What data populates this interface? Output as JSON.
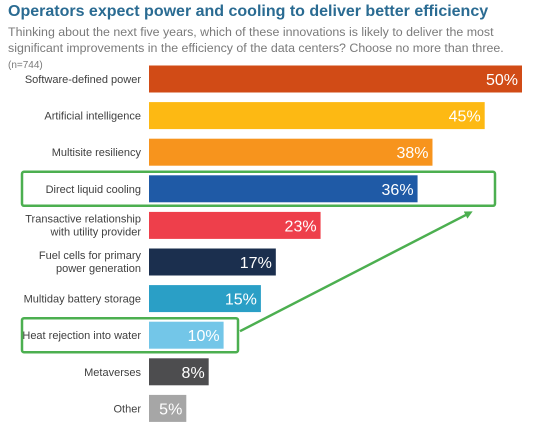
{
  "title": "Operators expect power and cooling to deliver better efficiency",
  "subtitle": "Thinking about the next five years, which of these innovations is likely to deliver the most significant improvements in the efficiency of the data centers? Choose no more than three.",
  "sample_note": "(n=744)",
  "chart_data": {
    "type": "bar",
    "orientation": "horizontal",
    "title": "Operators expect power and cooling to deliver better efficiency",
    "xlabel": "",
    "ylabel": "",
    "xlim": [
      0,
      50
    ],
    "grid": false,
    "legend": "none",
    "value_suffix": "%",
    "categories": [
      "Software-defined power",
      "Artificial intelligence",
      "Multisite resiliency",
      "Direct liquid cooling",
      "Transactive relationship with utility provider",
      "Fuel cells for primary power generation",
      "Multiday battery storage",
      "Heat rejection into water",
      "Metaverses",
      "Other"
    ],
    "values": [
      50,
      45,
      38,
      36,
      23,
      17,
      15,
      10,
      8,
      5
    ],
    "colors": [
      "#d14b16",
      "#fdb913",
      "#f7941d",
      "#1f5aa6",
      "#ee3f4b",
      "#1b2f4e",
      "#2a9fc6",
      "#73c6e8",
      "#4d4d4f",
      "#a6a6a6"
    ],
    "highlighted": [
      "Direct liquid cooling",
      "Heat rejection into water"
    ],
    "highlight_color": "#4caf50"
  }
}
